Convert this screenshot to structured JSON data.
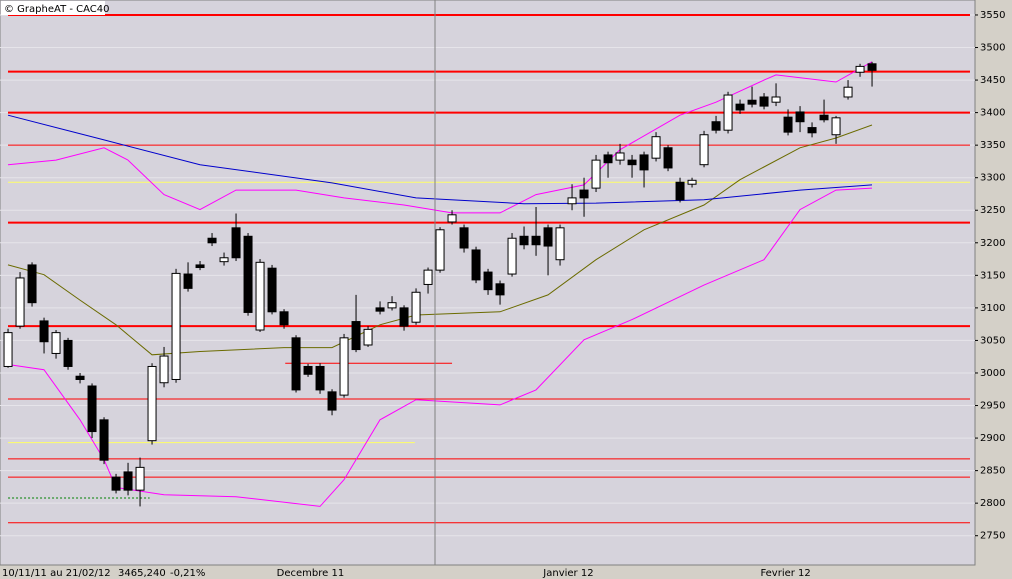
{
  "chart_data": {
    "type": "candlestick",
    "title": "© GrapheAT - CAC40",
    "footer": {
      "period": "10/11/11 au 21/02/12",
      "last": "3465,240",
      "change": "-0,21%"
    },
    "xlim": [
      -0.67,
      80.58
    ],
    "xticks": [
      {
        "value": 25.2,
        "label": "Decembre 11"
      },
      {
        "value": 46.7,
        "label": "Janvier 12"
      },
      {
        "value": 64.8,
        "label": "Fevrier 12"
      }
    ],
    "ylim": [
      2705,
      3573
    ],
    "yticks": [
      2750,
      2800,
      2850,
      2900,
      2950,
      3000,
      3050,
      3100,
      3150,
      3200,
      3250,
      3300,
      3350,
      3400,
      3450,
      3500,
      3550
    ],
    "grid": true,
    "up_color": "#ffffff",
    "down_color": "#000000",
    "open": [
      3010,
      3072,
      3166,
      3080,
      3030,
      3050,
      2995,
      2980,
      2928,
      2840,
      2848,
      2820,
      2896,
      2985,
      2990,
      3152,
      3166,
      3207,
      3171,
      3223,
      3210,
      3066,
      3161,
      3094,
      3054,
      3010,
      3010,
      2971,
      2966,
      3079,
      3043,
      3100,
      3100,
      3100,
      3078,
      3136,
      3158,
      3232,
      3223,
      3189,
      3155,
      3137,
      3152,
      3210,
      3210,
      3223,
      3174,
      3260,
      3281,
      3284,
      3335,
      3327,
      3327,
      3335,
      3330,
      3346,
      3293,
      3290,
      3320,
      3386,
      3373,
      3413,
      3419,
      3424,
      3416,
      3393,
      3401,
      3377,
      3396,
      3366,
      3424,
      3462,
      3475
    ],
    "high": [
      3068,
      3155,
      3170,
      3085,
      3066,
      3054,
      3000,
      2984,
      2932,
      2845,
      2862,
      2870,
      3015,
      3040,
      3160,
      3170,
      3172,
      3215,
      3185,
      3245,
      3215,
      3175,
      3166,
      3098,
      3058,
      3014,
      3015,
      2975,
      3060,
      3120,
      3072,
      3110,
      3118,
      3104,
      3130,
      3162,
      3224,
      3250,
      3228,
      3194,
      3160,
      3142,
      3215,
      3225,
      3255,
      3228,
      3228,
      3290,
      3300,
      3335,
      3340,
      3352,
      3335,
      3340,
      3370,
      3350,
      3300,
      3300,
      3372,
      3395,
      3432,
      3420,
      3440,
      3430,
      3445,
      3405,
      3410,
      3385,
      3420,
      3395,
      3450,
      3475,
      3478
    ],
    "low": [
      3008,
      3068,
      3102,
      3030,
      3022,
      3005,
      2984,
      2900,
      2860,
      2815,
      2812,
      2795,
      2890,
      2978,
      2985,
      3125,
      3158,
      3195,
      3165,
      3172,
      3088,
      3063,
      3090,
      3068,
      2970,
      2994,
      2968,
      2935,
      2962,
      3032,
      3040,
      3090,
      3096,
      3065,
      3074,
      3122,
      3154,
      3228,
      3185,
      3138,
      3120,
      3105,
      3148,
      3190,
      3180,
      3150,
      3165,
      3250,
      3240,
      3278,
      3300,
      3320,
      3300,
      3285,
      3325,
      3310,
      3262,
      3285,
      3316,
      3368,
      3368,
      3398,
      3408,
      3405,
      3410,
      3365,
      3370,
      3362,
      3385,
      3352,
      3420,
      3455,
      3440
    ],
    "close": [
      3062,
      3146,
      3108,
      3048,
      3062,
      3010,
      2990,
      2910,
      2866,
      2820,
      2820,
      2855,
      3010,
      3026,
      3153,
      3130,
      3162,
      3200,
      3177,
      3177,
      3093,
      3170,
      3094,
      3074,
      2974,
      2998,
      2974,
      2943,
      3054,
      3036,
      3067,
      3095,
      3108,
      3072,
      3124,
      3158,
      3220,
      3243,
      3192,
      3143,
      3128,
      3120,
      3207,
      3197,
      3197,
      3195,
      3223,
      3269,
      3269,
      3327,
      3323,
      3338,
      3320,
      3312,
      3363,
      3315,
      3266,
      3296,
      3366,
      3373,
      3427,
      3404,
      3413,
      3410,
      3424,
      3370,
      3386,
      3369,
      3389,
      3392,
      3439,
      3471,
      3465
    ],
    "overlays": [
      {
        "color": "#ff00ff",
        "x": [
          0,
          4,
          8,
          10,
          13,
          16,
          19,
          24,
          28,
          33,
          37,
          41,
          44,
          48,
          51,
          56,
          59,
          63,
          64,
          69,
          72
        ],
        "values": [
          3320,
          3327,
          3346,
          3327,
          3274,
          3251,
          3281,
          3281,
          3269,
          3258,
          3246,
          3246,
          3274,
          3289,
          3343,
          3396,
          3416,
          3450,
          3458,
          3447,
          3478
        ]
      },
      {
        "color": "#ff00ff",
        "x": [
          0,
          3,
          6,
          8,
          9,
          13,
          19,
          26,
          28,
          31,
          34,
          41,
          44,
          48,
          52,
          58,
          63,
          66,
          69,
          72
        ],
        "values": [
          3013,
          3005,
          2928,
          2867,
          2824,
          2813,
          2810,
          2795,
          2836,
          2928,
          2959,
          2951,
          2974,
          3051,
          3082,
          3135,
          3174,
          3251,
          3281,
          3284
        ]
      },
      {
        "color": "#6b6b00",
        "x": [
          0,
          3,
          6,
          9,
          12,
          16,
          23,
          27,
          31,
          34,
          41,
          45,
          49,
          53,
          58,
          61,
          66,
          69,
          72
        ],
        "values": [
          3166,
          3151,
          3112,
          3074,
          3028,
          3033,
          3039,
          3039,
          3074,
          3089,
          3094,
          3120,
          3174,
          3220,
          3258,
          3297,
          3346,
          3361,
          3381
        ]
      },
      {
        "color": "#0000cc",
        "x": [
          0,
          8,
          16,
          27,
          34,
          43,
          49,
          58,
          66,
          72
        ],
        "values": [
          3396,
          3358,
          3320,
          3292,
          3269,
          3260,
          3261,
          3266,
          3281,
          3289
        ]
      }
    ],
    "levels": [
      {
        "value": 3550,
        "color": "#ff0000",
        "width": 2
      },
      {
        "value": 3463,
        "color": "#ff0000",
        "width": 2
      },
      {
        "value": 3400,
        "color": "#ff0000",
        "width": 2
      },
      {
        "value": 3350,
        "color": "#ff0000",
        "width": 1
      },
      {
        "value": 3293,
        "color": "#ffff66",
        "width": 1
      },
      {
        "value": 3231,
        "color": "#ff0000",
        "width": 2
      },
      {
        "value": 3072,
        "color": "#ff0000",
        "width": 2
      },
      {
        "value": 3015,
        "color": "#ff0000",
        "width": 1,
        "from": 23.1,
        "to": 37
      },
      {
        "value": 2960,
        "color": "#ff0000",
        "width": 1
      },
      {
        "value": 2893,
        "color": "#ffff66",
        "width": 1,
        "from": 0,
        "to": 33.9
      },
      {
        "value": 2868,
        "color": "#ff0000",
        "width": 1
      },
      {
        "value": 2840,
        "color": "#ff0000",
        "width": 1
      },
      {
        "value": 2808,
        "color": "#008000",
        "width": 1,
        "from": 0,
        "to": 11.8,
        "dash": true
      },
      {
        "value": 2770,
        "color": "#ff0000",
        "width": 1
      }
    ]
  }
}
